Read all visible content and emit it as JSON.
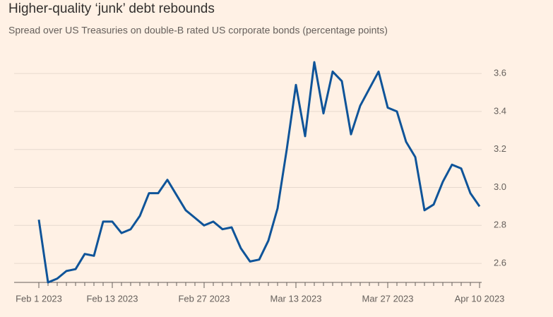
{
  "chart_data": {
    "type": "line",
    "title": "Higher-quality ‘junk’ debt rebounds",
    "subtitle": "Spread over US Treasuries on double-B rated US corporate bonds (percentage points)",
    "categories": [
      "Feb 1 2023",
      null,
      null,
      null,
      null,
      null,
      null,
      null,
      "Feb 13 2023",
      null,
      null,
      null,
      null,
      null,
      null,
      null,
      null,
      null,
      "Feb 27 2023",
      null,
      null,
      null,
      null,
      null,
      null,
      null,
      null,
      null,
      "Mar 13 2023",
      null,
      null,
      null,
      null,
      null,
      null,
      null,
      null,
      null,
      "Mar 27 2023",
      null,
      null,
      null,
      null,
      null,
      null,
      null,
      null,
      null,
      "Apr 10 2023"
    ],
    "series": [
      {
        "name": "Spread",
        "color": "#0f5499",
        "values": [
          2.83,
          2.5,
          2.52,
          2.56,
          2.57,
          2.65,
          2.64,
          2.82,
          2.82,
          2.76,
          2.78,
          2.85,
          2.97,
          2.97,
          3.04,
          2.96,
          2.88,
          2.84,
          2.8,
          2.82,
          2.78,
          2.79,
          2.68,
          2.61,
          2.62,
          2.72,
          2.89,
          3.2,
          3.54,
          3.27,
          3.66,
          3.39,
          3.61,
          3.56,
          3.28,
          3.43,
          3.52,
          3.61,
          3.42,
          3.4,
          3.24,
          3.16,
          2.88,
          2.91,
          3.03,
          3.12,
          3.1,
          2.97,
          2.9
        ]
      }
    ],
    "ylim": [
      2.5,
      3.7
    ],
    "yticks": [
      2.6,
      2.8,
      {
        "value": 3,
        "label": "3.0"
      },
      3.2,
      3.4,
      3.6
    ],
    "grid": true
  }
}
